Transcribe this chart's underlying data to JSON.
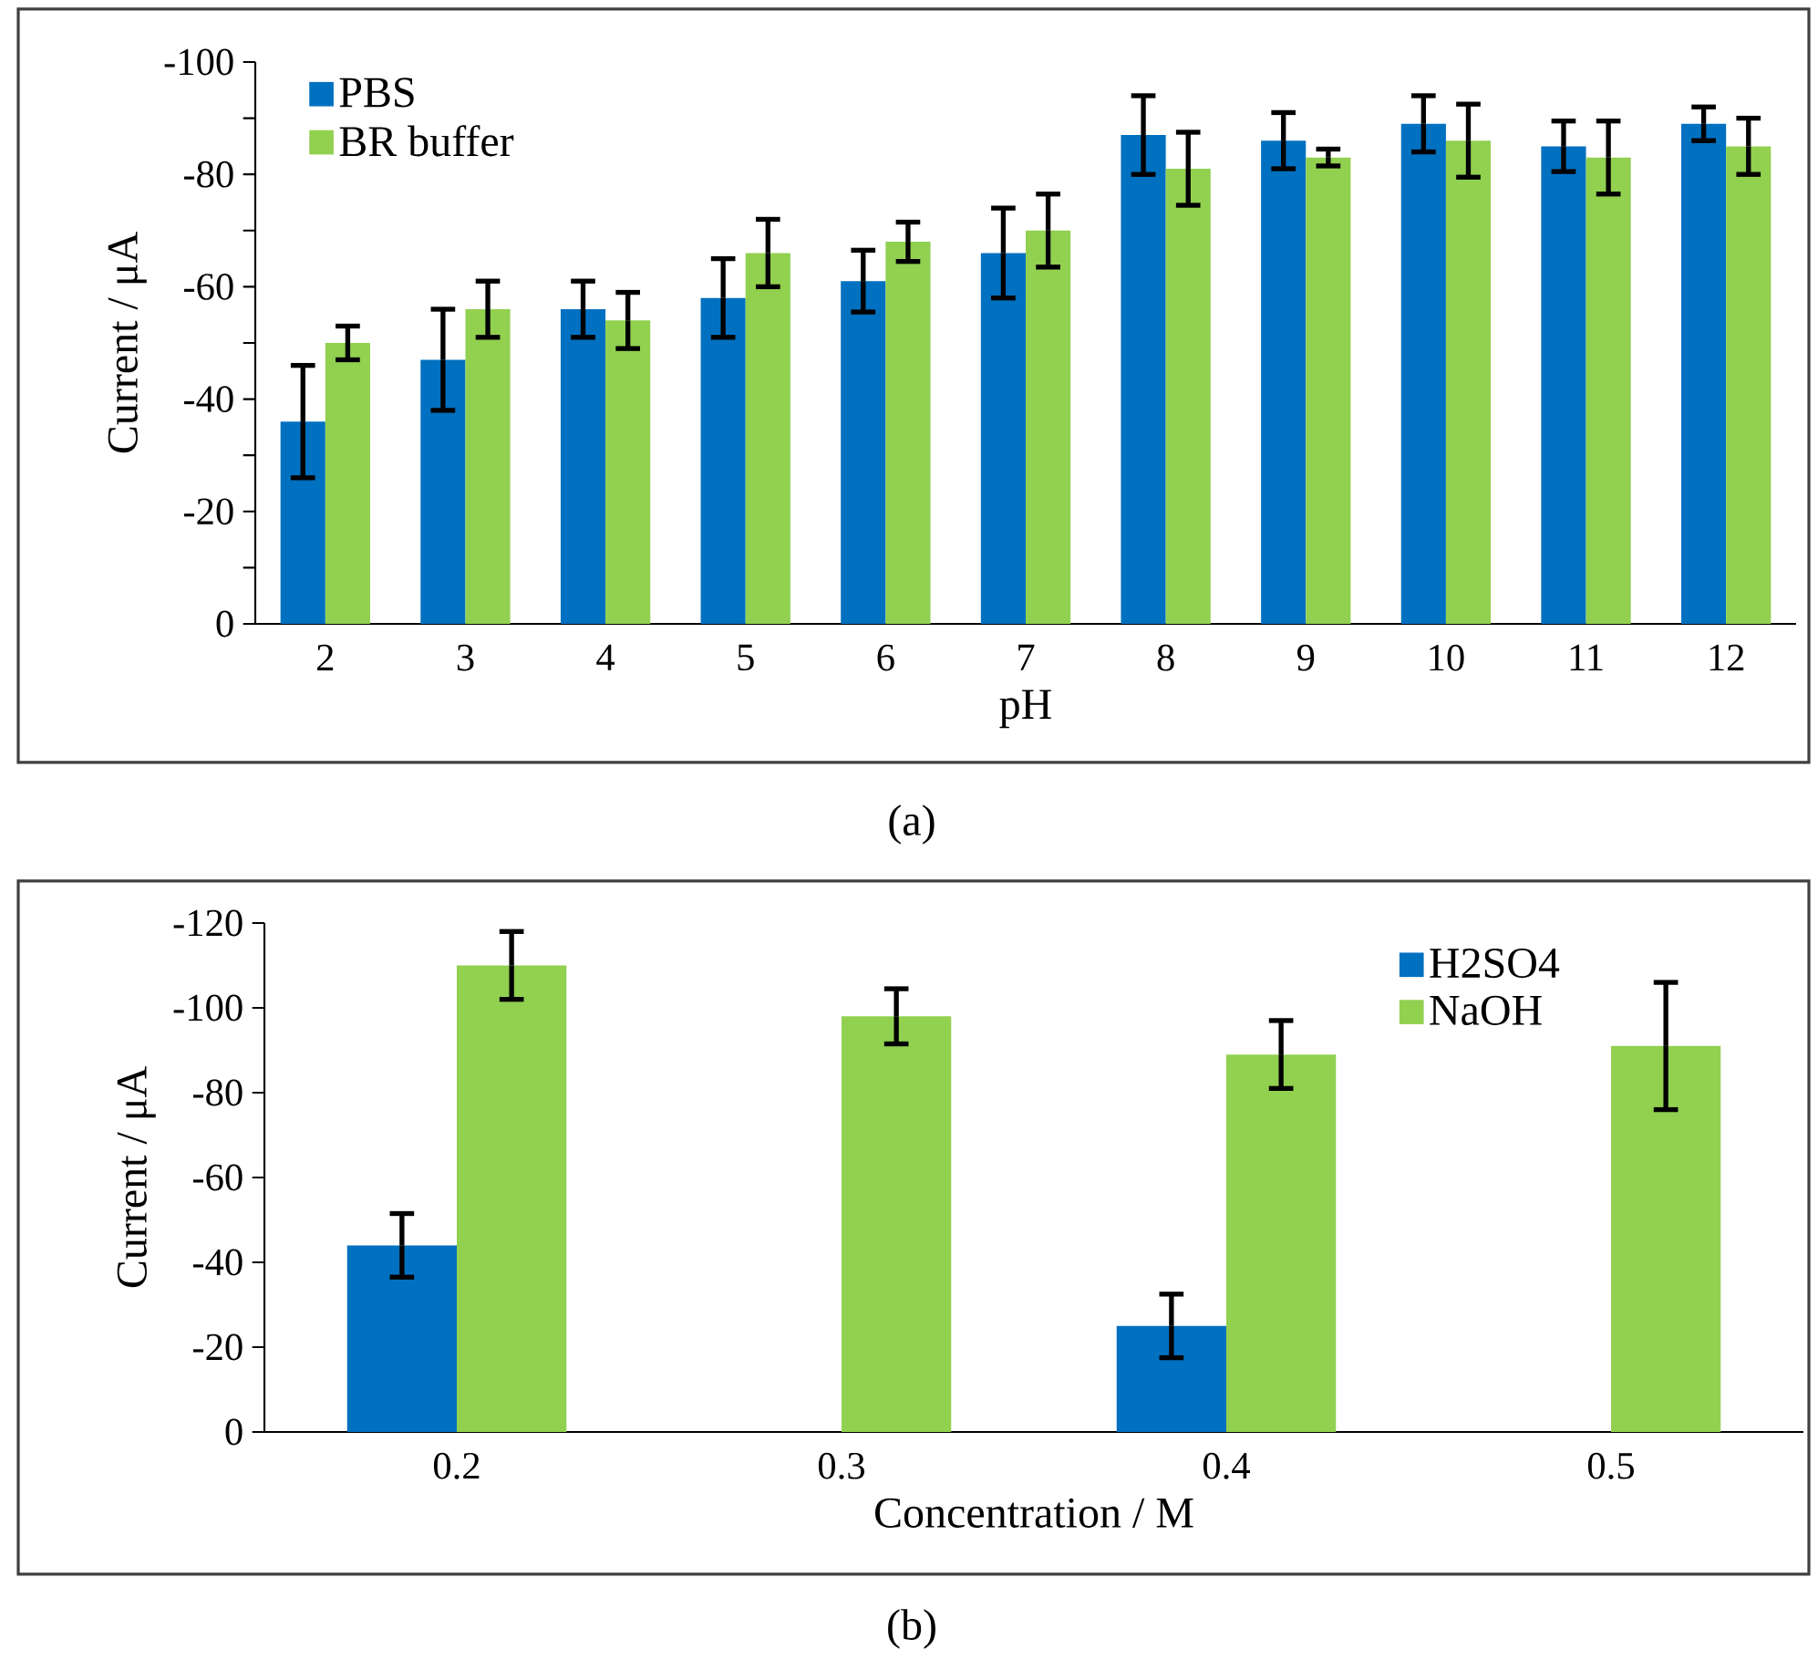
{
  "chart_data": [
    {
      "type": "bar",
      "xlabel": "pH",
      "ylabel": "Current / μA",
      "categories": [
        "2",
        "3",
        "4",
        "5",
        "6",
        "7",
        "8",
        "9",
        "10",
        "11",
        "12"
      ],
      "series": [
        {
          "name": "PBS",
          "color": "#0070c0",
          "values": [
            -36,
            -47,
            -56,
            -58,
            -61,
            -66,
            -87,
            -86,
            -89,
            -85,
            -89
          ],
          "errors": [
            10,
            9,
            5,
            7,
            5.5,
            8,
            7,
            5,
            5,
            4.5,
            3
          ]
        },
        {
          "name": "BR buffer",
          "color": "#92d050",
          "values": [
            -50,
            -56,
            -54,
            -66,
            -68,
            -70,
            -81,
            -83,
            -86,
            -83,
            -85
          ],
          "errors": [
            3,
            5,
            5,
            6,
            3.5,
            6.5,
            6.5,
            1.5,
            6.5,
            6.5,
            5
          ]
        }
      ],
      "ylim": [
        0,
        -100
      ],
      "yticks": [
        0,
        {
          "value": -10,
          "label": null
        },
        -20,
        {
          "value": -30,
          "label": null
        },
        -40,
        {
          "value": -50,
          "label": null
        },
        -60,
        {
          "value": -70,
          "label": null
        },
        -80,
        {
          "value": -90,
          "label": null
        },
        -100
      ],
      "legend": "top left",
      "annotations": [
        "(a)"
      ]
    },
    {
      "type": "bar",
      "xlabel": "Concentration / M",
      "ylabel": "Current / μA",
      "categories": [
        "0.2",
        "0.3",
        "0.4",
        "0.5"
      ],
      "series": [
        {
          "name": "H2SO4",
          "color": "#0070c0",
          "values": [
            -44,
            null,
            -25,
            null
          ],
          "errors": [
            7.5,
            null,
            7.5,
            null
          ]
        },
        {
          "name": "NaOH",
          "color": "#92d050",
          "values": [
            -110,
            -98,
            -89,
            -91
          ],
          "errors": [
            8,
            6.5,
            8,
            15
          ]
        }
      ],
      "ylim": [
        0,
        -120
      ],
      "yticks": [
        0,
        -20,
        -40,
        -60,
        -80,
        -100,
        -120
      ],
      "legend": "top right",
      "annotations": [
        "(b)"
      ]
    }
  ]
}
